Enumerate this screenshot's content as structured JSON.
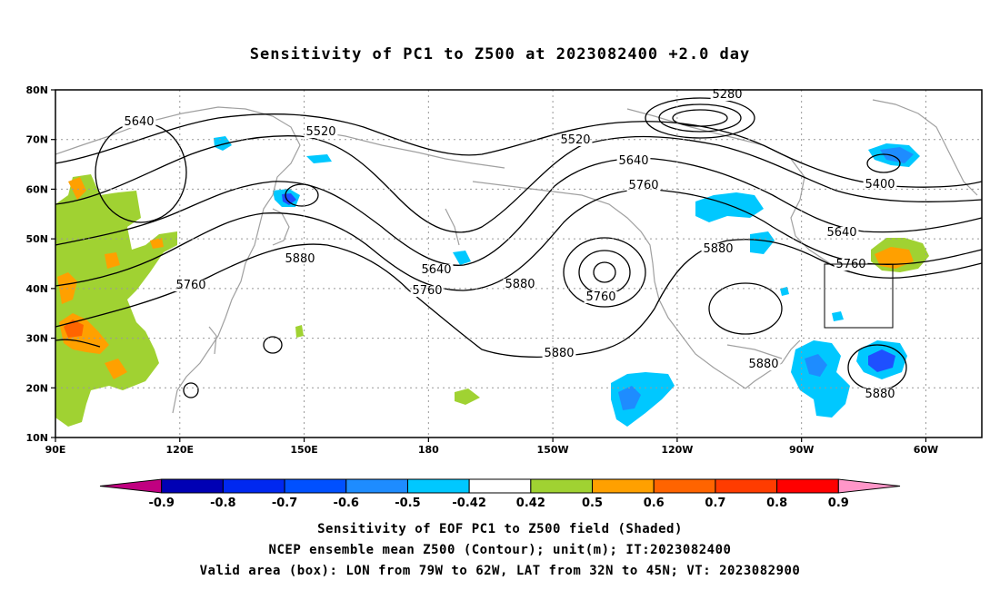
{
  "title": "Sensitivity of PC1 to Z500 at 2023082400 +2.0 day",
  "map": {
    "lat_ticks": [
      "80N",
      "70N",
      "60N",
      "50N",
      "40N",
      "30N",
      "20N",
      "10N"
    ],
    "lon_ticks": [
      "90E",
      "120E",
      "150E",
      "180",
      "150W",
      "120W",
      "90W",
      "60W"
    ],
    "contour_labels": [
      {
        "text": "5280",
        "value": 5280
      },
      {
        "text": "5400",
        "value": 5400
      },
      {
        "text": "5520",
        "value": 5520
      },
      {
        "text": "5520",
        "value": 5520
      },
      {
        "text": "5640",
        "value": 5640
      },
      {
        "text": "5640",
        "value": 5640
      },
      {
        "text": "5640",
        "value": 5640
      },
      {
        "text": "5640",
        "value": 5640
      },
      {
        "text": "5760",
        "value": 5760
      },
      {
        "text": "5760",
        "value": 5760
      },
      {
        "text": "5760",
        "value": 5760
      },
      {
        "text": "5760",
        "value": 5760
      },
      {
        "text": "5760",
        "value": 5760
      },
      {
        "text": "5880",
        "value": 5880
      },
      {
        "text": "5880",
        "value": 5880
      },
      {
        "text": "5880",
        "value": 5880
      },
      {
        "text": "5880",
        "value": 5880
      },
      {
        "text": "5880",
        "value": 5880
      },
      {
        "text": "5880",
        "value": 5880
      }
    ],
    "valid_box": {
      "lon_from": "79W",
      "lon_to": "62W",
      "lat_from": "32N",
      "lat_to": "45N"
    }
  },
  "colorbar": {
    "labels": [
      "-0.9",
      "-0.8",
      "-0.7",
      "-0.6",
      "-0.5",
      "-0.42",
      "0.42",
      "0.5",
      "0.6",
      "0.7",
      "0.8",
      "0.9"
    ],
    "colors": [
      "#c00080",
      "#0000b4",
      "#0028f0",
      "#0050ff",
      "#1e8cff",
      "#00c8ff",
      "#ffffff",
      "#a0d232",
      "#ffa000",
      "#ff6400",
      "#ff3c00",
      "#ff0000",
      "#ff96c8"
    ]
  },
  "colors": {
    "neg_strong": "#1e50ff",
    "neg_mid": "#1e8cff",
    "neg_weak": "#00c8ff",
    "pos_weak": "#a0d232",
    "pos_mid": "#ffa000",
    "pos_strong": "#ff6400",
    "coast": "#a0a0a0",
    "contour": "#000000"
  },
  "caption": {
    "line1": "Sensitivity of EOF PC1 to Z500 field (Shaded)",
    "line2": "NCEP ensemble mean Z500 (Contour); unit(m); IT:2023082400",
    "line3": "Valid area (box): LON from 79W to 62W, LAT from 32N to 45N; VT: 2023082900"
  }
}
